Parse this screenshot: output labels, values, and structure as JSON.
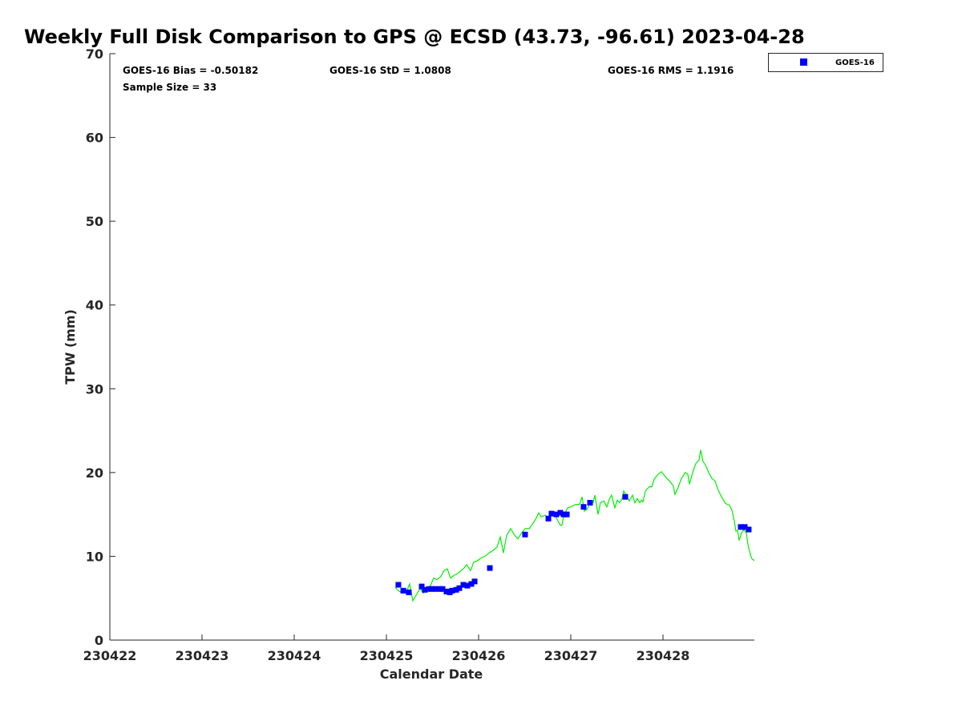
{
  "chart_data": {
    "type": "scatter",
    "title": "Weekly Full Disk Comparison to GPS @ ECSD (43.73, -96.61) 2023-04-28",
    "xlabel": "Calendar Date",
    "ylabel": "TPW (mm)",
    "x_units": "days since 230422",
    "xlim": [
      0,
      7
    ],
    "ylim": [
      0,
      70
    ],
    "xticks": [
      0,
      1,
      2,
      3,
      4,
      5,
      6
    ],
    "xtick_labels": [
      "230422",
      "230423",
      "230424",
      "230425",
      "230426",
      "230427",
      "230428"
    ],
    "yticks": [
      0,
      10,
      20,
      30,
      40,
      50,
      60,
      70
    ],
    "ytick_labels": [
      "0",
      "10",
      "20",
      "30",
      "40",
      "50",
      "60",
      "70"
    ],
    "grid": false,
    "legend": {
      "placement": "outside-top-right",
      "entries": [
        "GOES-16"
      ]
    },
    "stats": {
      "bias": "GOES-16 Bias = -0.50182",
      "std": "GOES-16 StD = 1.0808",
      "rms": "GOES-16 RMS = 1.1916",
      "sample": "Sample Size = 33"
    },
    "colors": {
      "goes": "#0000ff",
      "gps": "#00ee00"
    },
    "series": [
      {
        "name": "GOES-16",
        "kind": "scatter",
        "x": [
          3.13,
          3.183,
          3.243,
          3.383,
          3.417,
          3.461,
          3.496,
          3.53,
          3.574,
          3.609,
          3.652,
          3.687,
          3.713,
          3.757,
          3.791,
          3.835,
          3.878,
          3.922,
          3.957,
          4.122,
          4.504,
          4.757,
          4.791,
          4.843,
          4.887,
          4.922,
          4.957,
          5.139,
          5.209,
          5.591,
          6.843,
          6.887,
          6.93
        ],
        "y": [
          6.6,
          5.9,
          5.7,
          6.4,
          6.0,
          6.1,
          6.1,
          6.1,
          6.1,
          6.1,
          5.8,
          5.7,
          5.9,
          6.0,
          6.2,
          6.6,
          6.5,
          6.7,
          7.0,
          8.6,
          12.6,
          14.5,
          15.1,
          15.0,
          15.2,
          15.0,
          15.0,
          15.9,
          16.4,
          17.1,
          13.5,
          13.5,
          13.2
        ]
      },
      {
        "name": "GPS",
        "kind": "line",
        "x": [
          3.096,
          3.13,
          3.174,
          3.217,
          3.252,
          3.287,
          3.33,
          3.365,
          3.4,
          3.435,
          3.478,
          3.513,
          3.548,
          3.591,
          3.626,
          3.661,
          3.696,
          3.73,
          3.765,
          3.8,
          3.835,
          3.87,
          3.913,
          3.948,
          3.991,
          4.026,
          4.07,
          4.113,
          4.157,
          4.2,
          4.235,
          4.27,
          4.304,
          4.348,
          4.391,
          4.426,
          4.461,
          4.504,
          4.548,
          4.583,
          4.617,
          4.652,
          4.678,
          4.722,
          4.757,
          4.791,
          4.826,
          4.852,
          4.887,
          4.904,
          4.922,
          4.965,
          5.0,
          5.052,
          5.096,
          5.122,
          5.148,
          5.183,
          5.209,
          5.243,
          5.261,
          5.296,
          5.322,
          5.357,
          5.391,
          5.417,
          5.443,
          5.478,
          5.504,
          5.53,
          5.557,
          5.574,
          5.6,
          5.635,
          5.67,
          5.696,
          5.722,
          5.748,
          5.765,
          5.783,
          5.809,
          5.852,
          5.878,
          5.904,
          5.939,
          5.983,
          6.026,
          6.07,
          6.113,
          6.13,
          6.157,
          6.2,
          6.243,
          6.27,
          6.287,
          6.322,
          6.357,
          6.391,
          6.409,
          6.435,
          6.461,
          6.496,
          6.53,
          6.565,
          6.591,
          6.635,
          6.678,
          6.722,
          6.748,
          6.774,
          6.791,
          6.809,
          6.826,
          6.852,
          6.878,
          6.904,
          6.922,
          6.948,
          6.965,
          6.991
        ],
        "y": [
          6.3,
          5.9,
          5.6,
          5.8,
          6.7,
          4.7,
          5.5,
          6.2,
          5.6,
          6.0,
          6.5,
          7.4,
          7.2,
          7.6,
          8.3,
          8.5,
          7.4,
          7.7,
          7.9,
          8.2,
          8.5,
          9.0,
          8.3,
          9.3,
          9.5,
          9.8,
          10.0,
          10.4,
          10.7,
          11.1,
          12.3,
          10.4,
          12.5,
          13.3,
          12.5,
          12.1,
          12.7,
          13.3,
          13.3,
          13.8,
          14.4,
          15.2,
          14.7,
          14.9,
          14.7,
          15.2,
          15.0,
          14.4,
          13.7,
          13.7,
          14.8,
          15.8,
          15.9,
          16.2,
          16.2,
          17.1,
          15.4,
          15.7,
          16.4,
          16.4,
          17.3,
          15.0,
          16.4,
          16.6,
          15.9,
          16.8,
          17.3,
          15.8,
          16.7,
          16.4,
          16.9,
          17.8,
          17.3,
          16.6,
          17.3,
          16.4,
          16.9,
          16.4,
          16.7,
          16.5,
          17.8,
          18.3,
          18.3,
          19.2,
          19.7,
          20.1,
          19.5,
          19.0,
          18.4,
          17.4,
          18.0,
          19.3,
          20.0,
          19.8,
          18.6,
          20.0,
          21.1,
          21.5,
          22.7,
          21.3,
          20.9,
          20.0,
          19.3,
          19.0,
          18.1,
          17.1,
          16.3,
          16.1,
          15.5,
          14.2,
          13.0,
          13.1,
          11.9,
          12.8,
          13.2,
          12.8,
          11.4,
          10.2,
          9.7,
          9.5
        ]
      }
    ]
  }
}
